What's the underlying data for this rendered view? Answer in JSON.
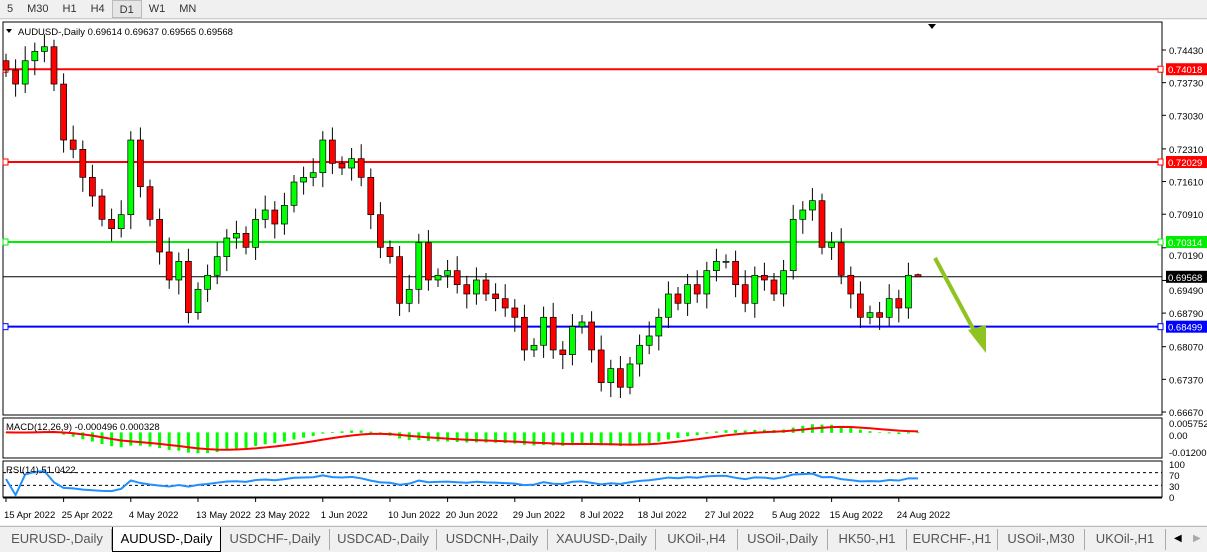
{
  "toolbar": {
    "timeframes": [
      "5",
      "M30",
      "H1",
      "H4",
      "D1",
      "W1",
      "MN"
    ],
    "active": "D1"
  },
  "chart": {
    "header": "AUDUSD-,Daily  0.69614 0.69637 0.69565 0.69568",
    "price_axis": [
      "0.74430",
      "0.73730",
      "0.73030",
      "0.72310",
      "0.71610",
      "0.70910",
      "0.70190",
      "0.69490",
      "0.68790",
      "0.68070",
      "0.67370",
      "0.66670"
    ],
    "levels": [
      {
        "price": 0.74018,
        "label": "0.74018",
        "color": "#ff0000"
      },
      {
        "price": 0.72029,
        "label": "0.72029",
        "color": "#ff0000"
      },
      {
        "price": 0.70314,
        "label": "0.70314",
        "color": "#00ee00"
      },
      {
        "price": 0.68499,
        "label": "0.68499",
        "color": "#0000ff"
      }
    ],
    "current_price": {
      "price": 0.69568,
      "label": "0.69568"
    },
    "bull_color": "#00ff00",
    "bear_color": "#ff0000"
  },
  "chart_data": {
    "type": "candlestick",
    "ylim": [
      0.6667,
      0.7443
    ],
    "closes": [
      0.74,
      0.737,
      0.742,
      0.744,
      0.745,
      0.737,
      0.725,
      0.723,
      0.717,
      0.713,
      0.708,
      0.706,
      0.709,
      0.725,
      0.715,
      0.708,
      0.701,
      0.695,
      0.699,
      0.688,
      0.693,
      0.696,
      0.7,
      0.704,
      0.705,
      0.702,
      0.708,
      0.71,
      0.707,
      0.711,
      0.716,
      0.717,
      0.718,
      0.725,
      0.72,
      0.719,
      0.721,
      0.717,
      0.709,
      0.702,
      0.7,
      0.69,
      0.693,
      0.703,
      0.695,
      0.696,
      0.697,
      0.694,
      0.692,
      0.695,
      0.692,
      0.691,
      0.689,
      0.687,
      0.68,
      0.681,
      0.687,
      0.68,
      0.679,
      0.685,
      0.686,
      0.68,
      0.673,
      0.676,
      0.672,
      0.677,
      0.681,
      0.683,
      0.687,
      0.692,
      0.69,
      0.694,
      0.692,
      0.697,
      0.699,
      0.699,
      0.694,
      0.69,
      0.696,
      0.695,
      0.692,
      0.697,
      0.708,
      0.71,
      0.712,
      0.702,
      0.703,
      0.696,
      0.692,
      0.687,
      0.688,
      0.687,
      0.691,
      0.689,
      0.696,
      0.69568
    ],
    "last_bar": {
      "open": 0.69614,
      "high": 0.69637,
      "low": 0.69565,
      "close": 0.69568
    },
    "x_labels": [
      {
        "i": 0,
        "t": "15 Apr 2022"
      },
      {
        "i": 6,
        "t": "25 Apr 2022"
      },
      {
        "i": 13,
        "t": "4 May 2022"
      },
      {
        "i": 20,
        "t": "13 May 2022"
      },
      {
        "i": 26,
        "t": "23 May 2022"
      },
      {
        "i": 33,
        "t": "1 Jun 2022"
      },
      {
        "i": 40,
        "t": "10 Jun 2022"
      },
      {
        "i": 46,
        "t": "20 Jun 2022"
      },
      {
        "i": 53,
        "t": "29 Jun 2022"
      },
      {
        "i": 60,
        "t": "8 Jul 2022"
      },
      {
        "i": 66,
        "t": "18 Jul 2022"
      },
      {
        "i": 73,
        "t": "27 Jul 2022"
      },
      {
        "i": 80,
        "t": "5 Aug 2022"
      },
      {
        "i": 86,
        "t": "15 Aug 2022"
      },
      {
        "i": 93,
        "t": "24 Aug 2022"
      }
    ]
  },
  "macd": {
    "label": "MACD(12,26,9) -0.000496 0.000328",
    "axis": [
      "0.005752",
      "0.00",
      "-0.012005"
    ],
    "ylim": [
      -0.012005,
      0.005752
    ]
  },
  "rsi": {
    "label": "RSI(14) 51.0422",
    "axis": [
      "100",
      "70",
      "30",
      "0"
    ]
  },
  "tabs": [
    "EURUSD-,Daily",
    "AUDUSD-,Daily",
    "USDCHF-,Daily",
    "USDCAD-,Daily",
    "USDCNH-,Daily",
    "XAUUSD-,Daily",
    "UKOil-,H4",
    "USOil-,Daily",
    "HK50-,H1",
    "EURCHF-,H1",
    "USOil-,M30",
    "UKOil-,H1"
  ],
  "active_tab": "AUDUSD-,Daily"
}
